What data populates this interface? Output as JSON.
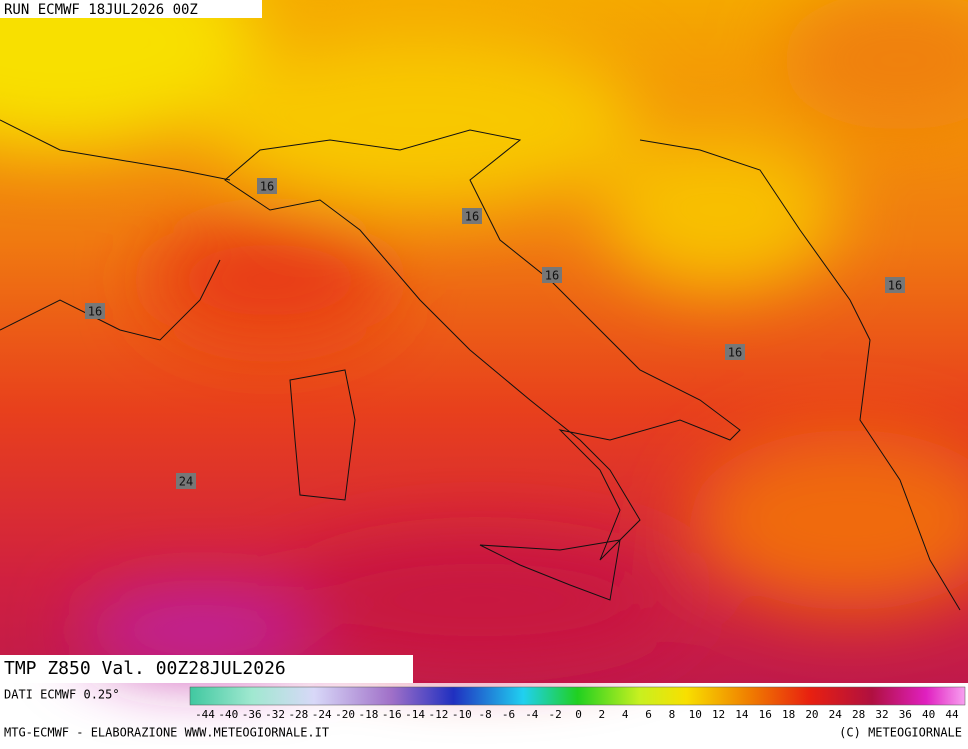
{
  "header": {
    "title": "RUN ECMWF 18JUL2026 00Z"
  },
  "footer": {
    "field": "TMP Z850 Val. 00Z28JUL2026",
    "source": "DATI ECMWF 0.25°",
    "credit": "MTG-ECMWF - ELABORAZIONE WWW.METEOGIORNALE.IT",
    "copyright": "(C) METEOGIORNALE"
  },
  "contour_labels": [
    "16",
    "16",
    "16",
    "16",
    "16",
    "16",
    "24"
  ],
  "color_scale": {
    "labels": [
      "-44",
      "-40",
      "-36",
      "-32",
      "-28",
      "-24",
      "-20",
      "-18",
      "-16",
      "-14",
      "-12",
      "-10",
      "-8",
      "-6",
      "-4",
      "-2",
      "0",
      "2",
      "4",
      "6",
      "8",
      "10",
      "12",
      "14",
      "16",
      "18",
      "20",
      "24",
      "28",
      "32",
      "36",
      "40",
      "44"
    ]
  }
}
